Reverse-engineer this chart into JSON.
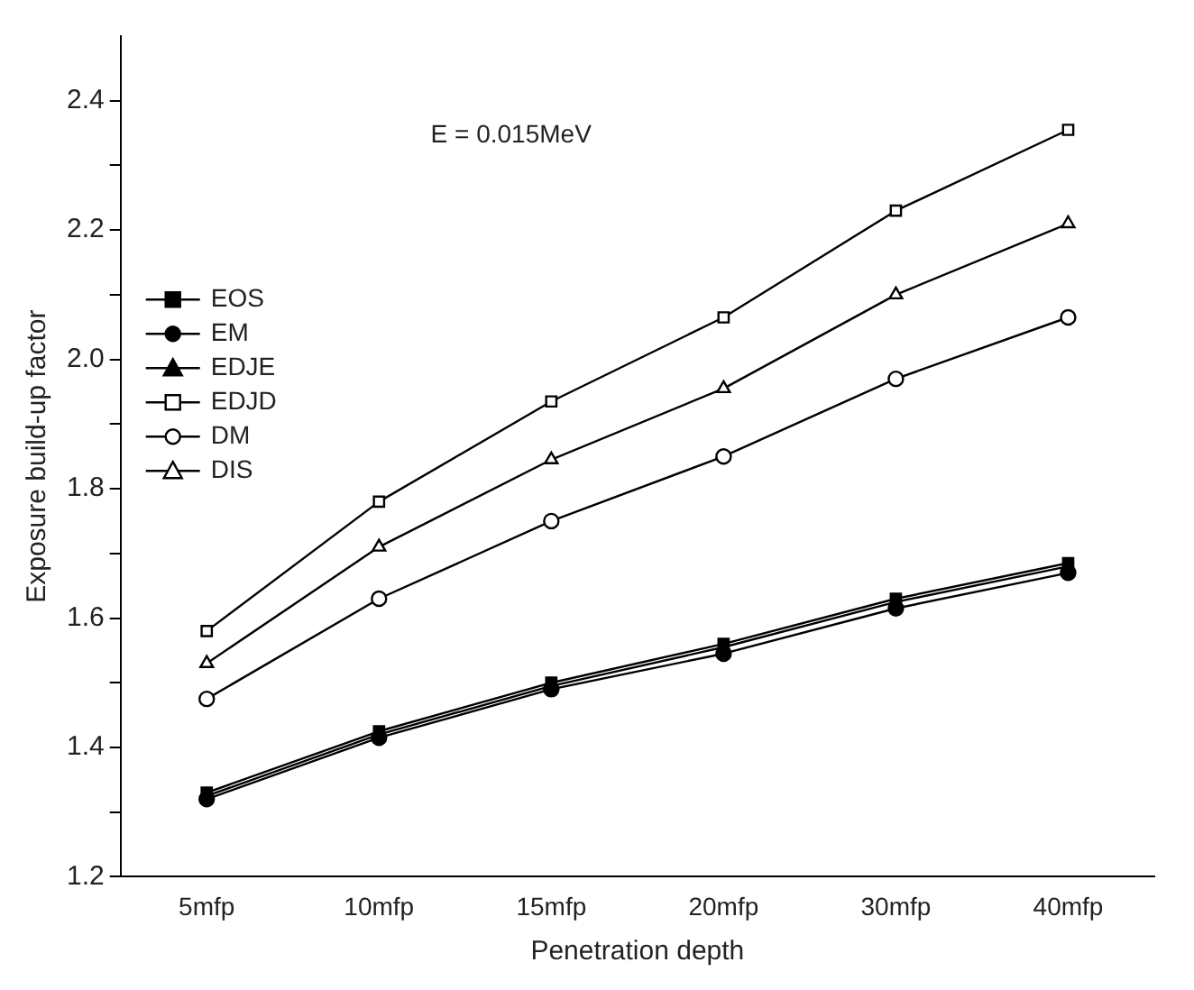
{
  "chart_data": {
    "type": "line",
    "xlabel": "Penetration depth",
    "ylabel": "Exposure build-up factor",
    "annotations": [
      "E = 0.015MeV"
    ],
    "categories": [
      "5mfp",
      "10mfp",
      "15mfp",
      "20mfp",
      "30mfp",
      "40mfp"
    ],
    "series": [
      {
        "name": "EOS",
        "color": "#000000",
        "marker": "square",
        "values": [
          1.33,
          1.425,
          1.5,
          1.56,
          1.63,
          1.685
        ]
      },
      {
        "name": "EM",
        "color": "#000000",
        "marker": "circle",
        "values": [
          1.32,
          1.415,
          1.49,
          1.545,
          1.615,
          1.67
        ]
      },
      {
        "name": "EDJE",
        "color": "#000000",
        "marker": "triangle",
        "values": [
          1.325,
          1.42,
          1.495,
          1.555,
          1.625,
          1.68
        ]
      },
      {
        "name": "EDJD",
        "color": "#000000",
        "marker": "square",
        "values": [
          1.58,
          1.78,
          1.935,
          2.065,
          2.23,
          2.355
        ]
      },
      {
        "name": "DM",
        "color": "#000000",
        "marker": "circle",
        "values": [
          1.475,
          1.63,
          1.75,
          1.85,
          1.97,
          2.065
        ]
      },
      {
        "name": "DIS",
        "color": "#000000",
        "marker": "triangle",
        "values": [
          1.53,
          1.71,
          1.845,
          1.955,
          2.1,
          2.21
        ]
      }
    ],
    "ylim": [
      1.2,
      2.5
    ],
    "yticks": [
      1.2,
      {
        "value": 1.3,
        "label": null
      },
      1.4,
      {
        "value": 1.5,
        "label": null
      },
      1.6,
      {
        "value": 1.7,
        "label": null
      },
      1.8,
      {
        "value": 1.9,
        "label": null
      },
      {
        "value": 2.0,
        "label": "2.0"
      },
      {
        "value": 2.1,
        "label": null
      },
      2.2,
      {
        "value": 2.3,
        "label": null
      },
      2.4
    ],
    "grid": false,
    "legend": "left",
    "line_style": "solid"
  }
}
